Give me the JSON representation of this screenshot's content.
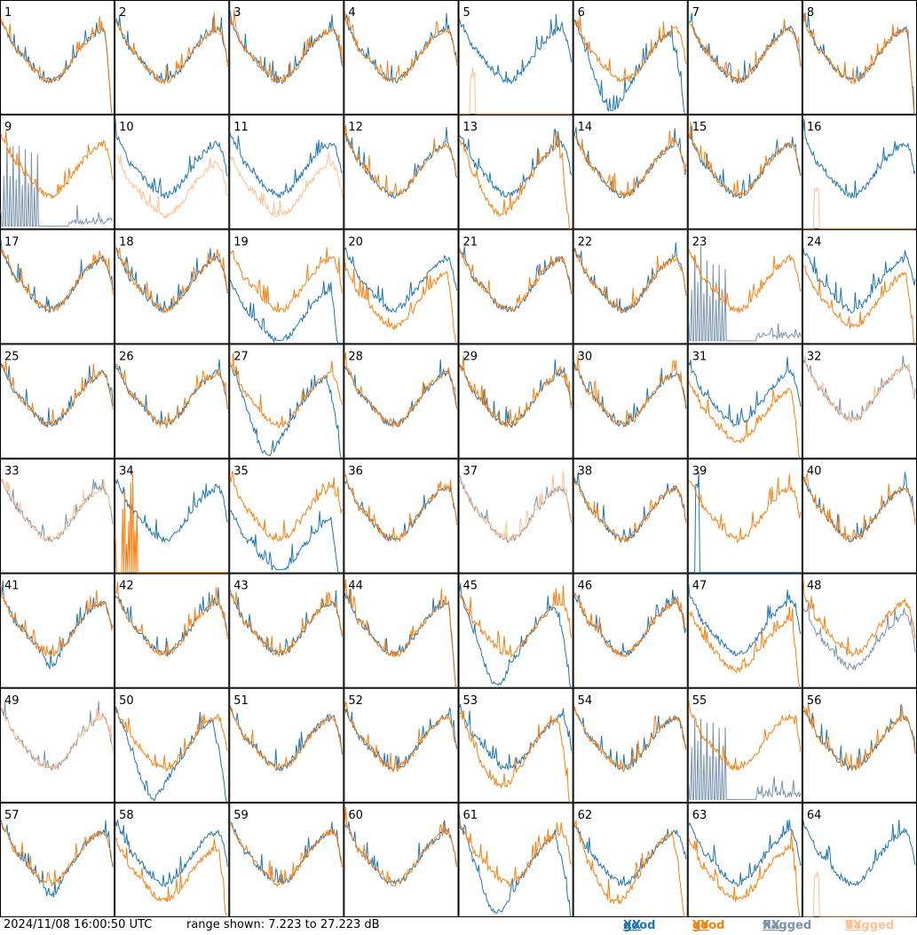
{
  "chart_data": {
    "type": "line",
    "grid_rows": 8,
    "grid_cols": 8,
    "panels": [
      {
        "label": "1",
        "xx": "good",
        "yy": "good",
        "shape": "A"
      },
      {
        "label": "2",
        "xx": "good",
        "yy": "good",
        "shape": "B"
      },
      {
        "label": "3",
        "xx": "good",
        "yy": "good",
        "shape": "B"
      },
      {
        "label": "4",
        "xx": "good",
        "yy": "good",
        "shape": "B"
      },
      {
        "label": "5",
        "xx": "good",
        "yy": "flagged",
        "shape": "C"
      },
      {
        "label": "6",
        "xx": "good",
        "yy": "good",
        "shape": "D"
      },
      {
        "label": "7",
        "xx": "good",
        "yy": "good",
        "shape": "B"
      },
      {
        "label": "8",
        "xx": "good",
        "yy": "good",
        "shape": "A"
      },
      {
        "label": "9",
        "xx": "flagged",
        "yy": "good",
        "shape": "E"
      },
      {
        "label": "10",
        "xx": "good",
        "yy": "flagged",
        "shape": "F"
      },
      {
        "label": "11",
        "xx": "good",
        "yy": "flagged",
        "shape": "F"
      },
      {
        "label": "12",
        "xx": "good",
        "yy": "good",
        "shape": "B"
      },
      {
        "label": "13",
        "xx": "good",
        "yy": "good",
        "shape": "G"
      },
      {
        "label": "14",
        "xx": "good",
        "yy": "good",
        "shape": "B"
      },
      {
        "label": "15",
        "xx": "good",
        "yy": "good",
        "shape": "B"
      },
      {
        "label": "16",
        "xx": "good",
        "yy": "flagged",
        "shape": "C"
      },
      {
        "label": "17",
        "xx": "good",
        "yy": "good",
        "shape": "B"
      },
      {
        "label": "18",
        "xx": "good",
        "yy": "good",
        "shape": "B"
      },
      {
        "label": "19",
        "xx": "good",
        "yy": "good",
        "shape": "H"
      },
      {
        "label": "20",
        "xx": "good",
        "yy": "good",
        "shape": "I"
      },
      {
        "label": "21",
        "xx": "good",
        "yy": "good",
        "shape": "B"
      },
      {
        "label": "22",
        "xx": "good",
        "yy": "good",
        "shape": "B"
      },
      {
        "label": "23",
        "xx": "flagged",
        "yy": "good",
        "shape": "E"
      },
      {
        "label": "24",
        "xx": "good",
        "yy": "good",
        "shape": "I"
      },
      {
        "label": "25",
        "xx": "good",
        "yy": "good",
        "shape": "B"
      },
      {
        "label": "26",
        "xx": "good",
        "yy": "good",
        "shape": "B"
      },
      {
        "label": "27",
        "xx": "good",
        "yy": "good",
        "shape": "D"
      },
      {
        "label": "28",
        "xx": "good",
        "yy": "good",
        "shape": "B"
      },
      {
        "label": "29",
        "xx": "good",
        "yy": "good",
        "shape": "B"
      },
      {
        "label": "30",
        "xx": "good",
        "yy": "good",
        "shape": "B"
      },
      {
        "label": "31",
        "xx": "good",
        "yy": "good",
        "shape": "I"
      },
      {
        "label": "32",
        "xx": "flagged",
        "yy": "flagged",
        "shape": "J"
      },
      {
        "label": "33",
        "xx": "flagged",
        "yy": "flagged",
        "shape": "B"
      },
      {
        "label": "34",
        "xx": "good",
        "yy": "good",
        "shape": "K"
      },
      {
        "label": "35",
        "xx": "good",
        "yy": "good",
        "shape": "H"
      },
      {
        "label": "36",
        "xx": "good",
        "yy": "good",
        "shape": "B"
      },
      {
        "label": "37",
        "xx": "flagged",
        "yy": "flagged",
        "shape": "B"
      },
      {
        "label": "38",
        "xx": "good",
        "yy": "good",
        "shape": "B"
      },
      {
        "label": "39",
        "xx": "good",
        "yy": "good",
        "shape": "L"
      },
      {
        "label": "40",
        "xx": "good",
        "yy": "good",
        "shape": "B"
      },
      {
        "label": "41",
        "xx": "good",
        "yy": "good",
        "shape": "M"
      },
      {
        "label": "42",
        "xx": "good",
        "yy": "good",
        "shape": "B"
      },
      {
        "label": "43",
        "xx": "good",
        "yy": "good",
        "shape": "B"
      },
      {
        "label": "44",
        "xx": "good",
        "yy": "good",
        "shape": "A"
      },
      {
        "label": "45",
        "xx": "good",
        "yy": "good",
        "shape": "D"
      },
      {
        "label": "46",
        "xx": "good",
        "yy": "good",
        "shape": "B"
      },
      {
        "label": "47",
        "xx": "good",
        "yy": "good",
        "shape": "I"
      },
      {
        "label": "48",
        "xx": "flagged",
        "yy": "good",
        "shape": "N"
      },
      {
        "label": "49",
        "xx": "flagged",
        "yy": "flagged",
        "shape": "B"
      },
      {
        "label": "50",
        "xx": "good",
        "yy": "good",
        "shape": "D"
      },
      {
        "label": "51",
        "xx": "good",
        "yy": "good",
        "shape": "B"
      },
      {
        "label": "52",
        "xx": "good",
        "yy": "good",
        "shape": "B"
      },
      {
        "label": "53",
        "xx": "good",
        "yy": "good",
        "shape": "G"
      },
      {
        "label": "54",
        "xx": "good",
        "yy": "good",
        "shape": "B"
      },
      {
        "label": "55",
        "xx": "flagged",
        "yy": "good",
        "shape": "E"
      },
      {
        "label": "56",
        "xx": "good",
        "yy": "good",
        "shape": "B"
      },
      {
        "label": "57",
        "xx": "good",
        "yy": "good",
        "shape": "M"
      },
      {
        "label": "58",
        "xx": "good",
        "yy": "good",
        "shape": "I"
      },
      {
        "label": "59",
        "xx": "good",
        "yy": "good",
        "shape": "B"
      },
      {
        "label": "60",
        "xx": "good",
        "yy": "good",
        "shape": "B"
      },
      {
        "label": "61",
        "xx": "good",
        "yy": "good",
        "shape": "D"
      },
      {
        "label": "62",
        "xx": "good",
        "yy": "good",
        "shape": "G"
      },
      {
        "label": "63",
        "xx": "good",
        "yy": "good",
        "shape": "I"
      },
      {
        "label": "64",
        "xx": "good",
        "yy": "flagged",
        "shape": "C"
      }
    ],
    "grid": false,
    "legend_placement": "bottom-right"
  },
  "footer": {
    "timestamp": "2024/11/08 16:00:50 UTC",
    "range_text": "range shown: 7.223 to 27.223 dB",
    "legend": [
      {
        "key": "good_xx",
        "prefix": "good ",
        "pol": "XX",
        "color": "#1f77b4"
      },
      {
        "key": "good_yy",
        "prefix": "good ",
        "pol": "YY",
        "color": "#ff7f0e"
      },
      {
        "key": "flagged_xx",
        "prefix": "flagged ",
        "pol": "XX",
        "color": "#7893ae"
      },
      {
        "key": "flagged_yy",
        "prefix": "flagged ",
        "pol": "YY",
        "color": "#ffc193"
      }
    ]
  },
  "colors": {
    "good_xx": "#1f77b4",
    "good_yy": "#ff7f0e",
    "flagged_xx": "#7893ae",
    "flagged_yy": "#ffc193"
  }
}
